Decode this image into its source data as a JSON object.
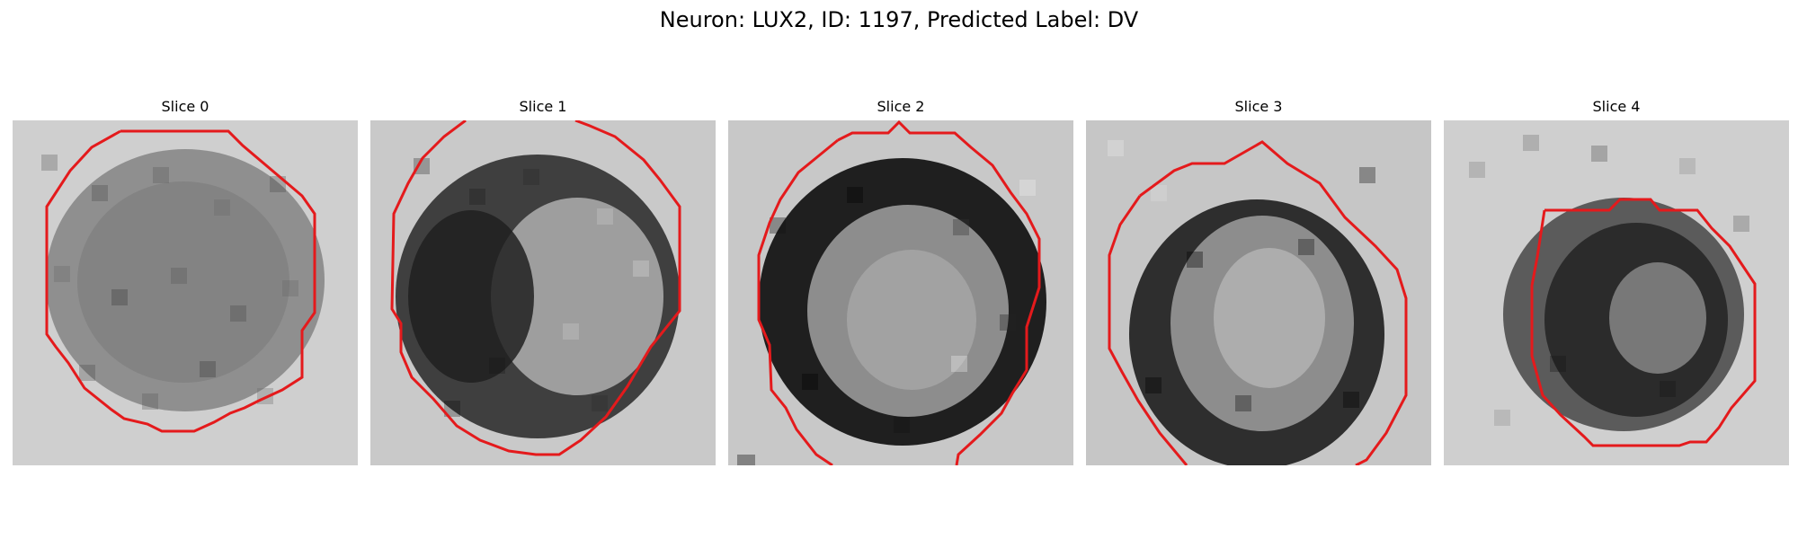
{
  "figure": {
    "title": "Neuron: LUX2, ID: 1197, Predicted Label: DV"
  },
  "panels": [
    {
      "title": "Slice 0"
    },
    {
      "title": "Slice 1"
    },
    {
      "title": "Slice 2"
    },
    {
      "title": "Slice 3"
    },
    {
      "title": "Slice 4"
    }
  ],
  "colors": {
    "contour": "#e41a1c",
    "background": "#ffffff",
    "image_light": "#d9d9d9",
    "image_dark": "#1f1f1f"
  }
}
